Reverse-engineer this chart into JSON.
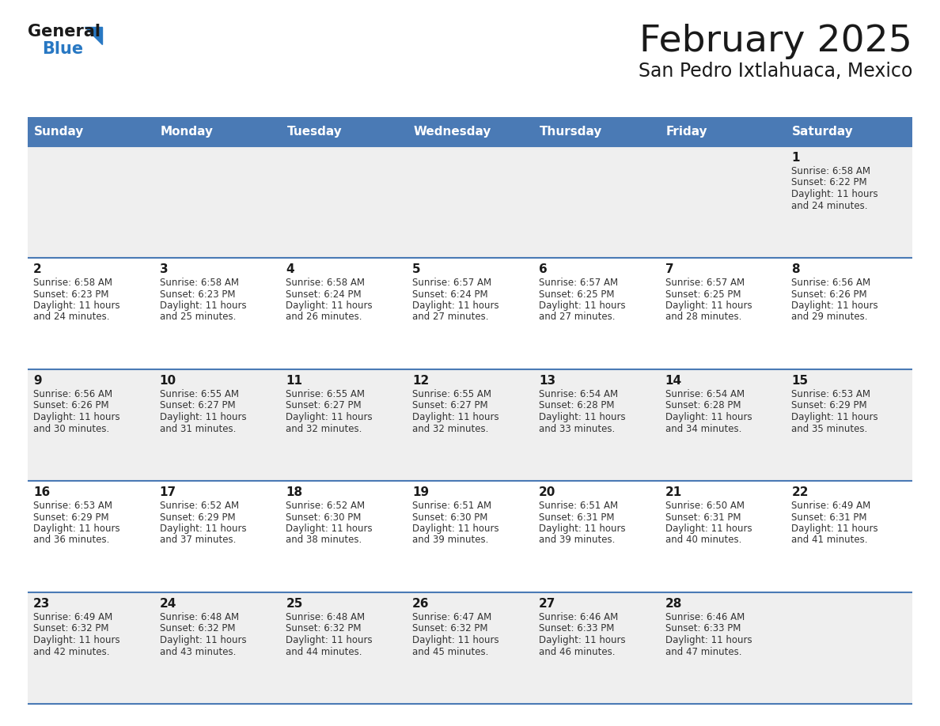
{
  "title": "February 2025",
  "subtitle": "San Pedro Ixtlahuaca, Mexico",
  "header_bg": "#4a7ab5",
  "header_text": "#ffffff",
  "row_bg_even": "#efefef",
  "row_bg_odd": "#ffffff",
  "separator_color": "#4a7ab5",
  "day_headers": [
    "Sunday",
    "Monday",
    "Tuesday",
    "Wednesday",
    "Thursday",
    "Friday",
    "Saturday"
  ],
  "title_color": "#1a1a1a",
  "subtitle_color": "#1a1a1a",
  "day_num_color": "#1a1a1a",
  "info_color": "#333333",
  "logo_text_color": "#1a1a1a",
  "logo_blue_color": "#2878c3",
  "days": [
    {
      "day": 1,
      "col": 6,
      "row": 0,
      "sunrise": "6:58 AM",
      "sunset": "6:22 PM",
      "daylight_h": "11 hours",
      "daylight_m": "24 minutes."
    },
    {
      "day": 2,
      "col": 0,
      "row": 1,
      "sunrise": "6:58 AM",
      "sunset": "6:23 PM",
      "daylight_h": "11 hours",
      "daylight_m": "24 minutes."
    },
    {
      "day": 3,
      "col": 1,
      "row": 1,
      "sunrise": "6:58 AM",
      "sunset": "6:23 PM",
      "daylight_h": "11 hours",
      "daylight_m": "25 minutes."
    },
    {
      "day": 4,
      "col": 2,
      "row": 1,
      "sunrise": "6:58 AM",
      "sunset": "6:24 PM",
      "daylight_h": "11 hours",
      "daylight_m": "26 minutes."
    },
    {
      "day": 5,
      "col": 3,
      "row": 1,
      "sunrise": "6:57 AM",
      "sunset": "6:24 PM",
      "daylight_h": "11 hours",
      "daylight_m": "27 minutes."
    },
    {
      "day": 6,
      "col": 4,
      "row": 1,
      "sunrise": "6:57 AM",
      "sunset": "6:25 PM",
      "daylight_h": "11 hours",
      "daylight_m": "27 minutes."
    },
    {
      "day": 7,
      "col": 5,
      "row": 1,
      "sunrise": "6:57 AM",
      "sunset": "6:25 PM",
      "daylight_h": "11 hours",
      "daylight_m": "28 minutes."
    },
    {
      "day": 8,
      "col": 6,
      "row": 1,
      "sunrise": "6:56 AM",
      "sunset": "6:26 PM",
      "daylight_h": "11 hours",
      "daylight_m": "29 minutes."
    },
    {
      "day": 9,
      "col": 0,
      "row": 2,
      "sunrise": "6:56 AM",
      "sunset": "6:26 PM",
      "daylight_h": "11 hours",
      "daylight_m": "30 minutes."
    },
    {
      "day": 10,
      "col": 1,
      "row": 2,
      "sunrise": "6:55 AM",
      "sunset": "6:27 PM",
      "daylight_h": "11 hours",
      "daylight_m": "31 minutes."
    },
    {
      "day": 11,
      "col": 2,
      "row": 2,
      "sunrise": "6:55 AM",
      "sunset": "6:27 PM",
      "daylight_h": "11 hours",
      "daylight_m": "32 minutes."
    },
    {
      "day": 12,
      "col": 3,
      "row": 2,
      "sunrise": "6:55 AM",
      "sunset": "6:27 PM",
      "daylight_h": "11 hours",
      "daylight_m": "32 minutes."
    },
    {
      "day": 13,
      "col": 4,
      "row": 2,
      "sunrise": "6:54 AM",
      "sunset": "6:28 PM",
      "daylight_h": "11 hours",
      "daylight_m": "33 minutes."
    },
    {
      "day": 14,
      "col": 5,
      "row": 2,
      "sunrise": "6:54 AM",
      "sunset": "6:28 PM",
      "daylight_h": "11 hours",
      "daylight_m": "34 minutes."
    },
    {
      "day": 15,
      "col": 6,
      "row": 2,
      "sunrise": "6:53 AM",
      "sunset": "6:29 PM",
      "daylight_h": "11 hours",
      "daylight_m": "35 minutes."
    },
    {
      "day": 16,
      "col": 0,
      "row": 3,
      "sunrise": "6:53 AM",
      "sunset": "6:29 PM",
      "daylight_h": "11 hours",
      "daylight_m": "36 minutes."
    },
    {
      "day": 17,
      "col": 1,
      "row": 3,
      "sunrise": "6:52 AM",
      "sunset": "6:29 PM",
      "daylight_h": "11 hours",
      "daylight_m": "37 minutes."
    },
    {
      "day": 18,
      "col": 2,
      "row": 3,
      "sunrise": "6:52 AM",
      "sunset": "6:30 PM",
      "daylight_h": "11 hours",
      "daylight_m": "38 minutes."
    },
    {
      "day": 19,
      "col": 3,
      "row": 3,
      "sunrise": "6:51 AM",
      "sunset": "6:30 PM",
      "daylight_h": "11 hours",
      "daylight_m": "39 minutes."
    },
    {
      "day": 20,
      "col": 4,
      "row": 3,
      "sunrise": "6:51 AM",
      "sunset": "6:31 PM",
      "daylight_h": "11 hours",
      "daylight_m": "39 minutes."
    },
    {
      "day": 21,
      "col": 5,
      "row": 3,
      "sunrise": "6:50 AM",
      "sunset": "6:31 PM",
      "daylight_h": "11 hours",
      "daylight_m": "40 minutes."
    },
    {
      "day": 22,
      "col": 6,
      "row": 3,
      "sunrise": "6:49 AM",
      "sunset": "6:31 PM",
      "daylight_h": "11 hours",
      "daylight_m": "41 minutes."
    },
    {
      "day": 23,
      "col": 0,
      "row": 4,
      "sunrise": "6:49 AM",
      "sunset": "6:32 PM",
      "daylight_h": "11 hours",
      "daylight_m": "42 minutes."
    },
    {
      "day": 24,
      "col": 1,
      "row": 4,
      "sunrise": "6:48 AM",
      "sunset": "6:32 PM",
      "daylight_h": "11 hours",
      "daylight_m": "43 minutes."
    },
    {
      "day": 25,
      "col": 2,
      "row": 4,
      "sunrise": "6:48 AM",
      "sunset": "6:32 PM",
      "daylight_h": "11 hours",
      "daylight_m": "44 minutes."
    },
    {
      "day": 26,
      "col": 3,
      "row": 4,
      "sunrise": "6:47 AM",
      "sunset": "6:32 PM",
      "daylight_h": "11 hours",
      "daylight_m": "45 minutes."
    },
    {
      "day": 27,
      "col": 4,
      "row": 4,
      "sunrise": "6:46 AM",
      "sunset": "6:33 PM",
      "daylight_h": "11 hours",
      "daylight_m": "46 minutes."
    },
    {
      "day": 28,
      "col": 5,
      "row": 4,
      "sunrise": "6:46 AM",
      "sunset": "6:33 PM",
      "daylight_h": "11 hours",
      "daylight_m": "47 minutes."
    }
  ]
}
